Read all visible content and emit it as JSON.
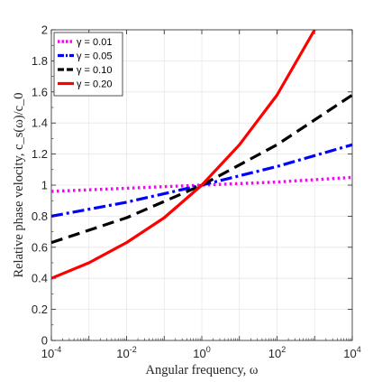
{
  "chart_data": {
    "type": "line",
    "xlabel": "Angular frequency, ω",
    "ylabel": "Relative phase velocity, c_s(ω)/c_0",
    "x_scale": "log",
    "xlim": [
      0.0001,
      10000
    ],
    "ylim": [
      0,
      2
    ],
    "x_ticks": [
      {
        "value": 0.0001,
        "base": "10",
        "exp": "-4"
      },
      {
        "value": 0.01,
        "base": "10",
        "exp": "-2"
      },
      {
        "value": 1,
        "base": "10",
        "exp": "0"
      },
      {
        "value": 100,
        "base": "10",
        "exp": "2"
      },
      {
        "value": 10000,
        "base": "10",
        "exp": "4"
      }
    ],
    "y_ticks": [
      "0",
      "0.2",
      "0.4",
      "0.6",
      "0.8",
      "1",
      "1.2",
      "1.4",
      "1.6",
      "1.8",
      "2"
    ],
    "grid": true,
    "legend_position": "top-left",
    "series": [
      {
        "name": "γ = 0.01",
        "color": "#ff00ff",
        "style": "dotted",
        "x": [
          0.0001,
          0.01,
          1,
          100,
          10000
        ],
        "y": [
          0.96,
          0.98,
          1.0,
          1.02,
          1.05
        ]
      },
      {
        "name": "γ = 0.05",
        "color": "#0000ff",
        "style": "dashdot",
        "x": [
          0.0001,
          0.01,
          1,
          100,
          10000
        ],
        "y": [
          0.8,
          0.89,
          1.0,
          1.12,
          1.26
        ]
      },
      {
        "name": "γ = 0.10",
        "color": "#000000",
        "style": "dashed",
        "x": [
          0.0001,
          0.01,
          1,
          100,
          10000
        ],
        "y": [
          0.63,
          0.79,
          1.0,
          1.26,
          1.58
        ]
      },
      {
        "name": "γ = 0.20",
        "color": "#ff0000",
        "style": "solid",
        "x": [
          0.0001,
          0.001,
          0.01,
          0.1,
          1,
          10,
          100,
          1000
        ],
        "y": [
          0.4,
          0.5,
          0.63,
          0.79,
          1.0,
          1.26,
          1.58,
          2.0
        ]
      }
    ]
  }
}
